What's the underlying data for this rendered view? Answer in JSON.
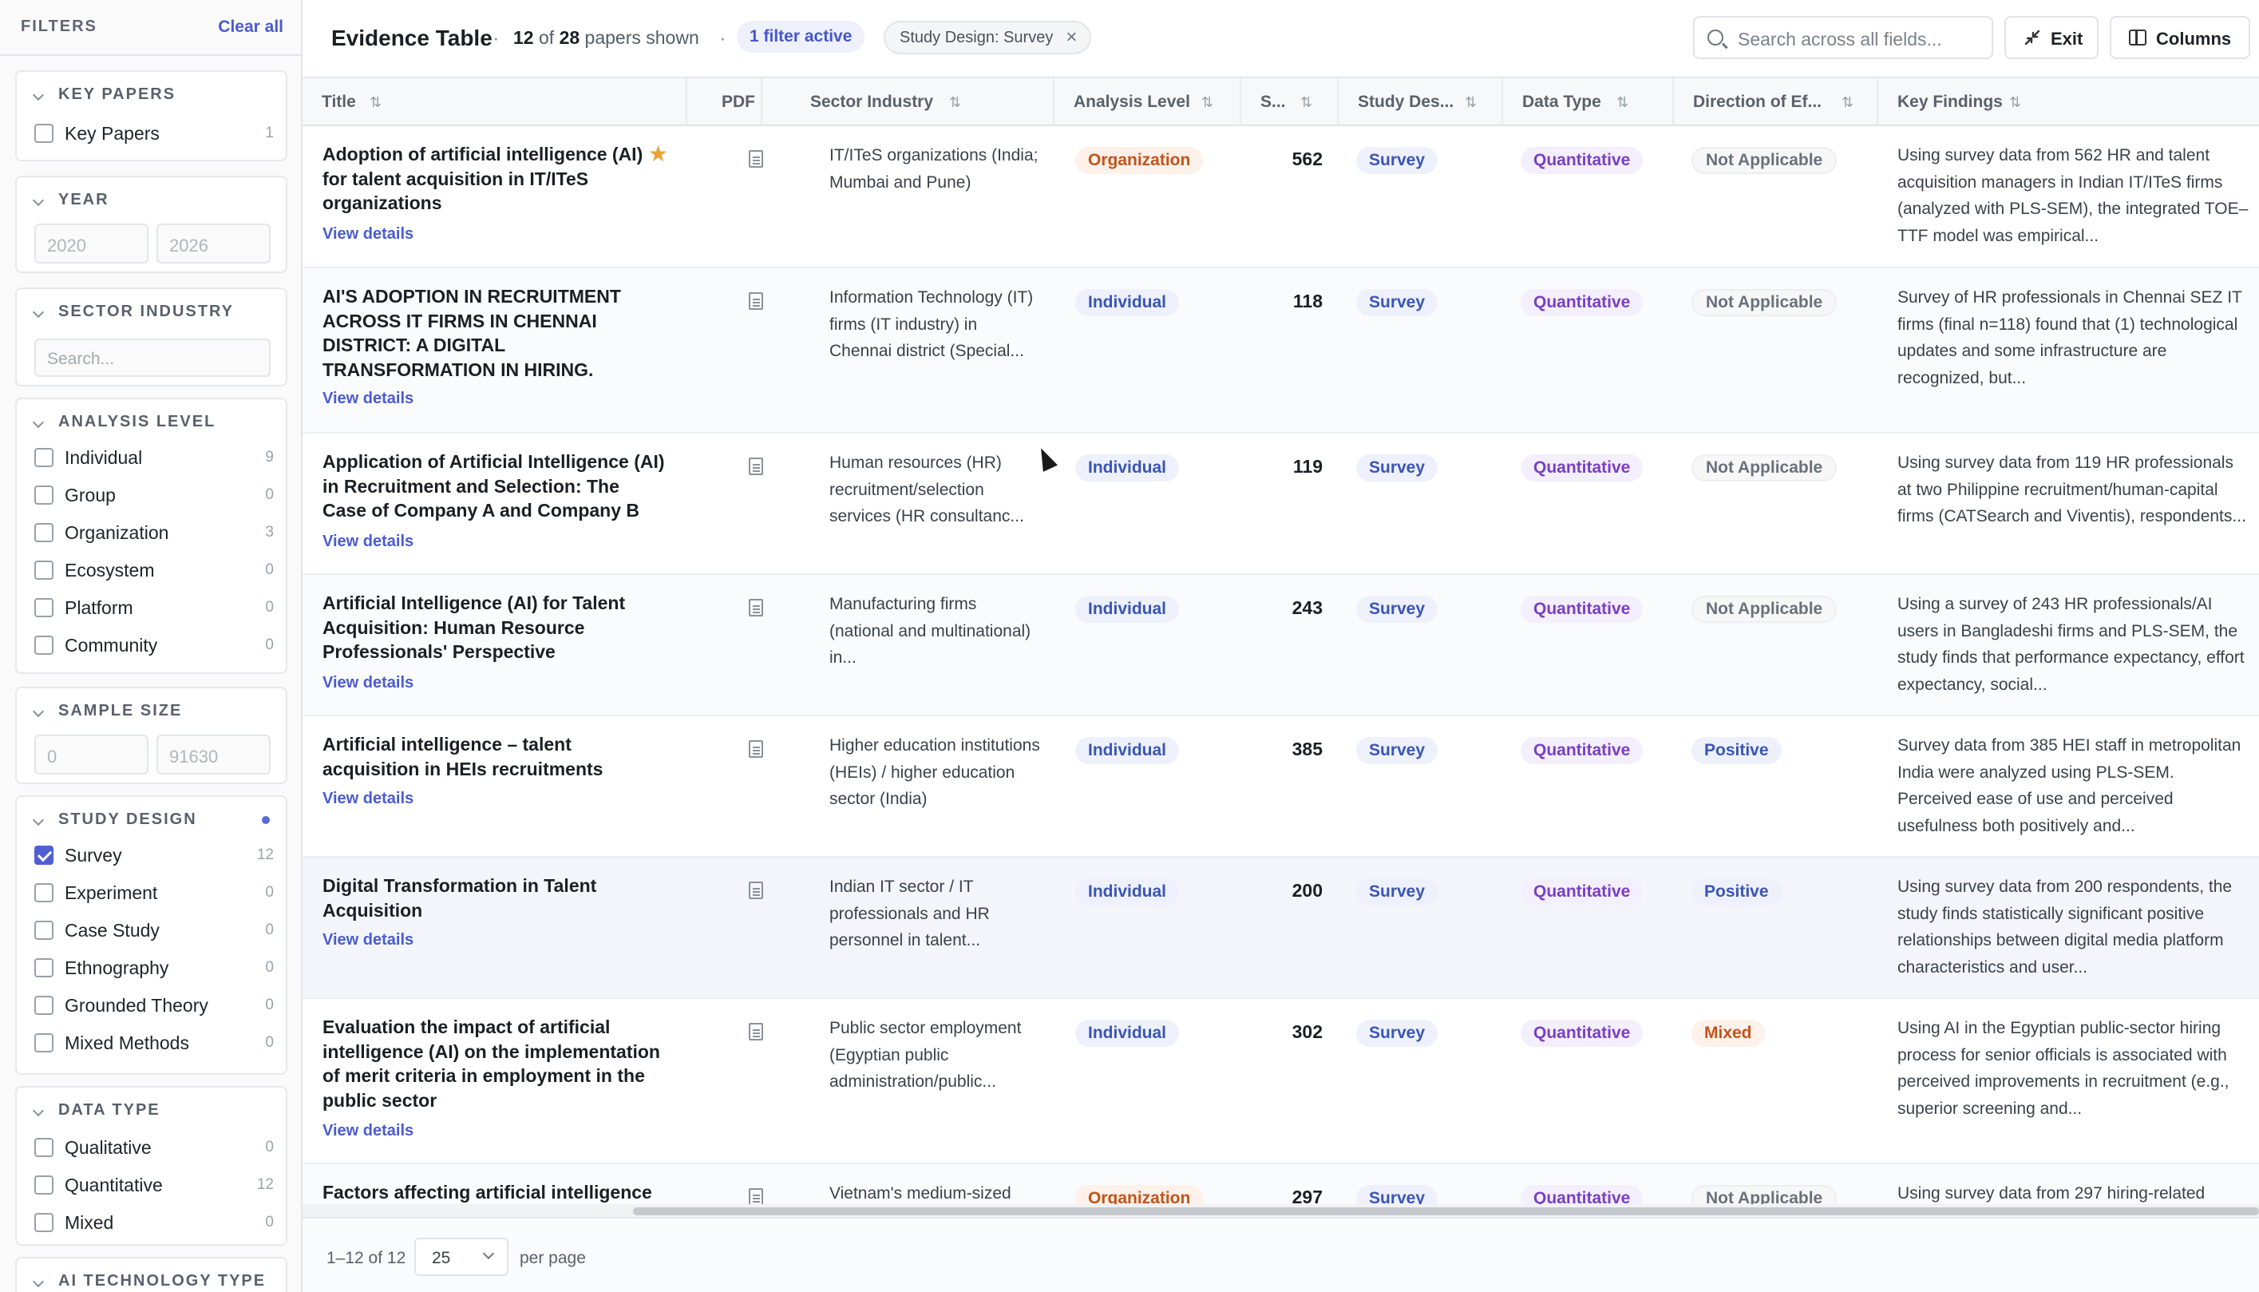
{
  "sidebar": {
    "title": "FILTERS",
    "clear_all": "Clear all",
    "key_papers": {
      "title": "KEY PAPERS",
      "options": [
        {
          "label": "Key Papers",
          "count": "1",
          "checked": false
        }
      ]
    },
    "year": {
      "title": "YEAR",
      "from_placeholder": "2020",
      "to_placeholder": "2026"
    },
    "sector_industry": {
      "title": "SECTOR INDUSTRY",
      "placeholder": "Search..."
    },
    "analysis_level": {
      "title": "ANALYSIS LEVEL",
      "options": [
        {
          "label": "Individual",
          "count": "9",
          "checked": false
        },
        {
          "label": "Group",
          "count": "0",
          "checked": false
        },
        {
          "label": "Organization",
          "count": "3",
          "checked": false
        },
        {
          "label": "Ecosystem",
          "count": "0",
          "checked": false
        },
        {
          "label": "Platform",
          "count": "0",
          "checked": false
        },
        {
          "label": "Community",
          "count": "0",
          "checked": false
        }
      ]
    },
    "sample_size": {
      "title": "SAMPLE SIZE",
      "min_placeholder": "0",
      "max_placeholder": "91630"
    },
    "study_design": {
      "title": "STUDY DESIGN",
      "options": [
        {
          "label": "Survey",
          "count": "12",
          "checked": true
        },
        {
          "label": "Experiment",
          "count": "0",
          "checked": false
        },
        {
          "label": "Case Study",
          "count": "0",
          "checked": false
        },
        {
          "label": "Ethnography",
          "count": "0",
          "checked": false
        },
        {
          "label": "Grounded Theory",
          "count": "0",
          "checked": false
        },
        {
          "label": "Mixed Methods",
          "count": "0",
          "checked": false
        }
      ]
    },
    "data_type": {
      "title": "DATA TYPE",
      "options": [
        {
          "label": "Qualitative",
          "count": "0",
          "checked": false
        },
        {
          "label": "Quantitative",
          "count": "12",
          "checked": false
        },
        {
          "label": "Mixed",
          "count": "0",
          "checked": false
        }
      ]
    },
    "ai_technology_type": {
      "title": "AI TECHNOLOGY TYPE"
    }
  },
  "header": {
    "title": "Evidence Table",
    "sep": "·",
    "shown": "12",
    "of_label": "of",
    "total": "28",
    "suffix": "papers shown",
    "filter_active": "1 filter active",
    "chip_label": "Study Design: Survey",
    "chip_close": "×",
    "search_placeholder": "Search across all fields...",
    "exit_label": "Exit",
    "columns_label": "Columns"
  },
  "columns": [
    {
      "label": "Title"
    },
    {
      "label": "PDF"
    },
    {
      "label": "Sector Industry"
    },
    {
      "label": "Analysis Level"
    },
    {
      "label": "S..."
    },
    {
      "label": "Study Des..."
    },
    {
      "label": "Data Type"
    },
    {
      "label": "Direction of Ef..."
    },
    {
      "label": "Key Findings"
    }
  ],
  "view_details": "View details",
  "rows": [
    {
      "title": "Adoption of artificial intelligence (AI) for talent acquisition in IT/ITeS organizations",
      "starred": true,
      "sector": "IT/ITeS organizations (India; Mumbai and Pune)",
      "analysis": "Organization",
      "size": "562",
      "design": "Survey",
      "data_type": "Quantitative",
      "direction": "Not Applicable",
      "findings": "Using survey data from 562 HR and talent acquisition managers in Indian IT/ITeS firms (analyzed with PLS-SEM), the integrated TOE–TTF model was empirical..."
    },
    {
      "title": "AI'S ADOPTION IN RECRUITMENT ACROSS IT FIRMS IN CHENNAI DISTRICT: A DIGITAL TRANSFORMATION IN HIRING.",
      "starred": false,
      "sector": "Information Technology (IT) firms (IT industry) in Chennai district (Special...",
      "analysis": "Individual",
      "size": "118",
      "design": "Survey",
      "data_type": "Quantitative",
      "direction": "Not Applicable",
      "findings": "Survey of HR professionals in Chennai SEZ IT firms (final n=118) found that (1) technological updates and some infrastructure are recognized, but..."
    },
    {
      "title": "Application of Artificial Intelligence (AI) in Recruitment and Selection: The Case of Company A and Company B",
      "starred": false,
      "sector": "Human resources (HR) recruitment/selection services (HR consultanc...",
      "analysis": "Individual",
      "size": "119",
      "design": "Survey",
      "data_type": "Quantitative",
      "direction": "Not Applicable",
      "findings": "Using survey data from 119 HR professionals at two Philippine recruitment/human-capital firms (CATSearch and Viventis), respondents..."
    },
    {
      "title": "Artificial Intelligence (AI) for Talent Acquisition: Human Resource Professionals' Perspective",
      "starred": false,
      "sector": "Manufacturing firms (national and multinational) in...",
      "analysis": "Individual",
      "size": "243",
      "design": "Survey",
      "data_type": "Quantitative",
      "direction": "Not Applicable",
      "findings": "Using a survey of 243 HR professionals/AI users in Bangladeshi firms and PLS-SEM, the study finds that performance expectancy, effort expectancy, social..."
    },
    {
      "title": "Artificial intelligence – talent acquisition in HEIs recruitments",
      "starred": false,
      "sector": "Higher education institutions (HEIs) / higher education sector (India)",
      "analysis": "Individual",
      "size": "385",
      "design": "Survey",
      "data_type": "Quantitative",
      "direction": "Positive",
      "findings": "Survey data from 385 HEI staff in metropolitan India were analyzed using PLS-SEM. Perceived ease of use and perceived usefulness both positively and..."
    },
    {
      "title": "Digital Transformation in Talent Acquisition",
      "starred": false,
      "sector": "Indian IT sector / IT professionals and HR personnel in talent...",
      "analysis": "Individual",
      "size": "200",
      "design": "Survey",
      "data_type": "Quantitative",
      "direction": "Positive",
      "findings": "Using survey data from 200 respondents, the study finds statistically significant positive relationships between digital media platform characteristics and user..."
    },
    {
      "title": "Evaluation the impact of artificial intelligence (AI) on the implementation of merit criteria in employment in the public sector",
      "starred": false,
      "sector": "Public sector employment (Egyptian public administration/public...",
      "analysis": "Individual",
      "size": "302",
      "design": "Survey",
      "data_type": "Quantitative",
      "direction": "Mixed",
      "findings": "Using AI in the Egyptian public-sector hiring process for senior officials is associated with perceived improvements in recruitment (e.g., superior screening and..."
    },
    {
      "title": "Factors affecting artificial intelligence",
      "starred": false,
      "sector": "Vietnam's medium-sized",
      "analysis": "Organization",
      "size": "297",
      "design": "Survey",
      "data_type": "Quantitative",
      "direction": "Not Applicable",
      "findings": "Using survey data from 297 hiring-related"
    }
  ],
  "footer": {
    "range": "1–12 of 12",
    "per_page_value": "25",
    "per_page_label": "per page"
  }
}
